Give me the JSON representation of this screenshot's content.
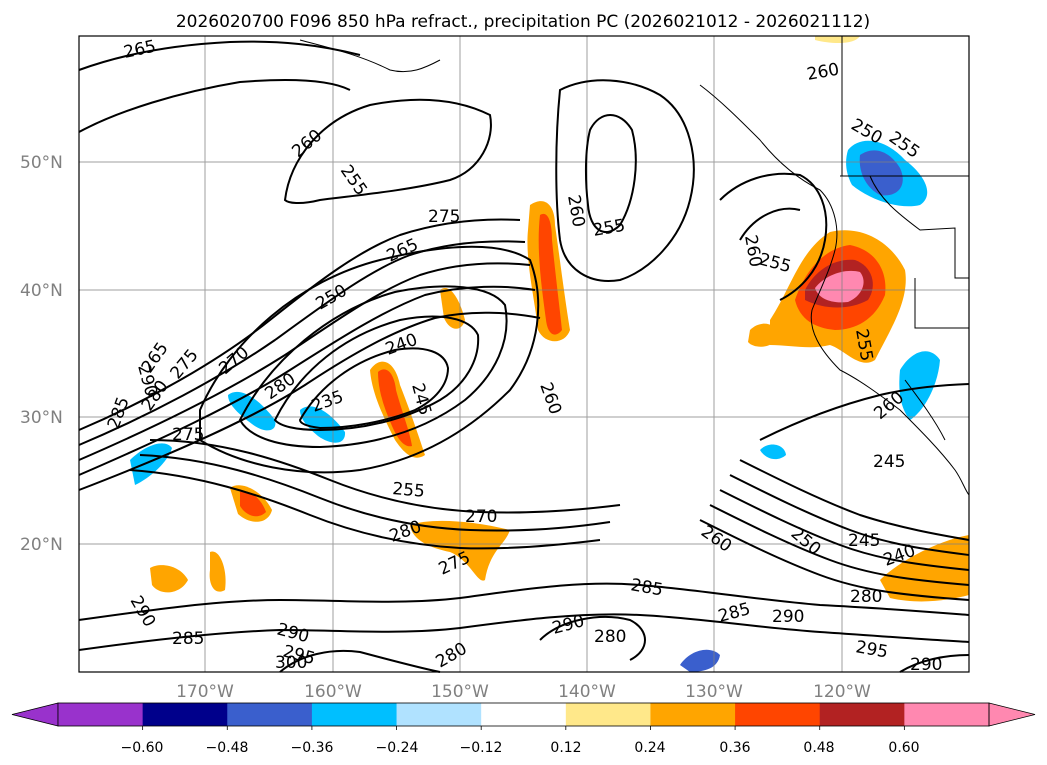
{
  "title": "2026020700 F096 850 hPa refract., precipitation PC (2026021012 - 2026021112)",
  "axes": {
    "lat_labels": [
      "50°N",
      "40°N",
      "30°N",
      "20°N"
    ],
    "lon_labels": [
      "170°W",
      "160°W",
      "150°W",
      "140°W",
      "130°W",
      "120°W"
    ]
  },
  "contour_labels": [
    "265",
    "260",
    "255",
    "275",
    "265",
    "250",
    "240",
    "235",
    "245",
    "260",
    "255",
    "260",
    "255",
    "260",
    "255",
    "265",
    "270",
    "275",
    "280",
    "285",
    "290",
    "260",
    "280",
    "270",
    "275",
    "255",
    "280",
    "275",
    "285",
    "290",
    "285",
    "290",
    "295",
    "300",
    "280",
    "290",
    "280",
    "285",
    "290",
    "260",
    "250",
    "245",
    "240",
    "280",
    "295",
    "290",
    "245",
    "250",
    "255",
    "260"
  ],
  "colorbar": {
    "ticks": [
      "−0.60",
      "−0.48",
      "−0.36",
      "−0.24",
      "−0.12",
      "0.12",
      "0.24",
      "0.36",
      "0.48",
      "0.60"
    ],
    "colors": [
      "#9932cc",
      "#00008b",
      "#3a5fcd",
      "#00bfff",
      "#b0e2ff",
      "#ffffff",
      "#ffe88a",
      "#ffa500",
      "#ff4500",
      "#b22222",
      "#ff88b0",
      "#ff88b0"
    ]
  }
}
